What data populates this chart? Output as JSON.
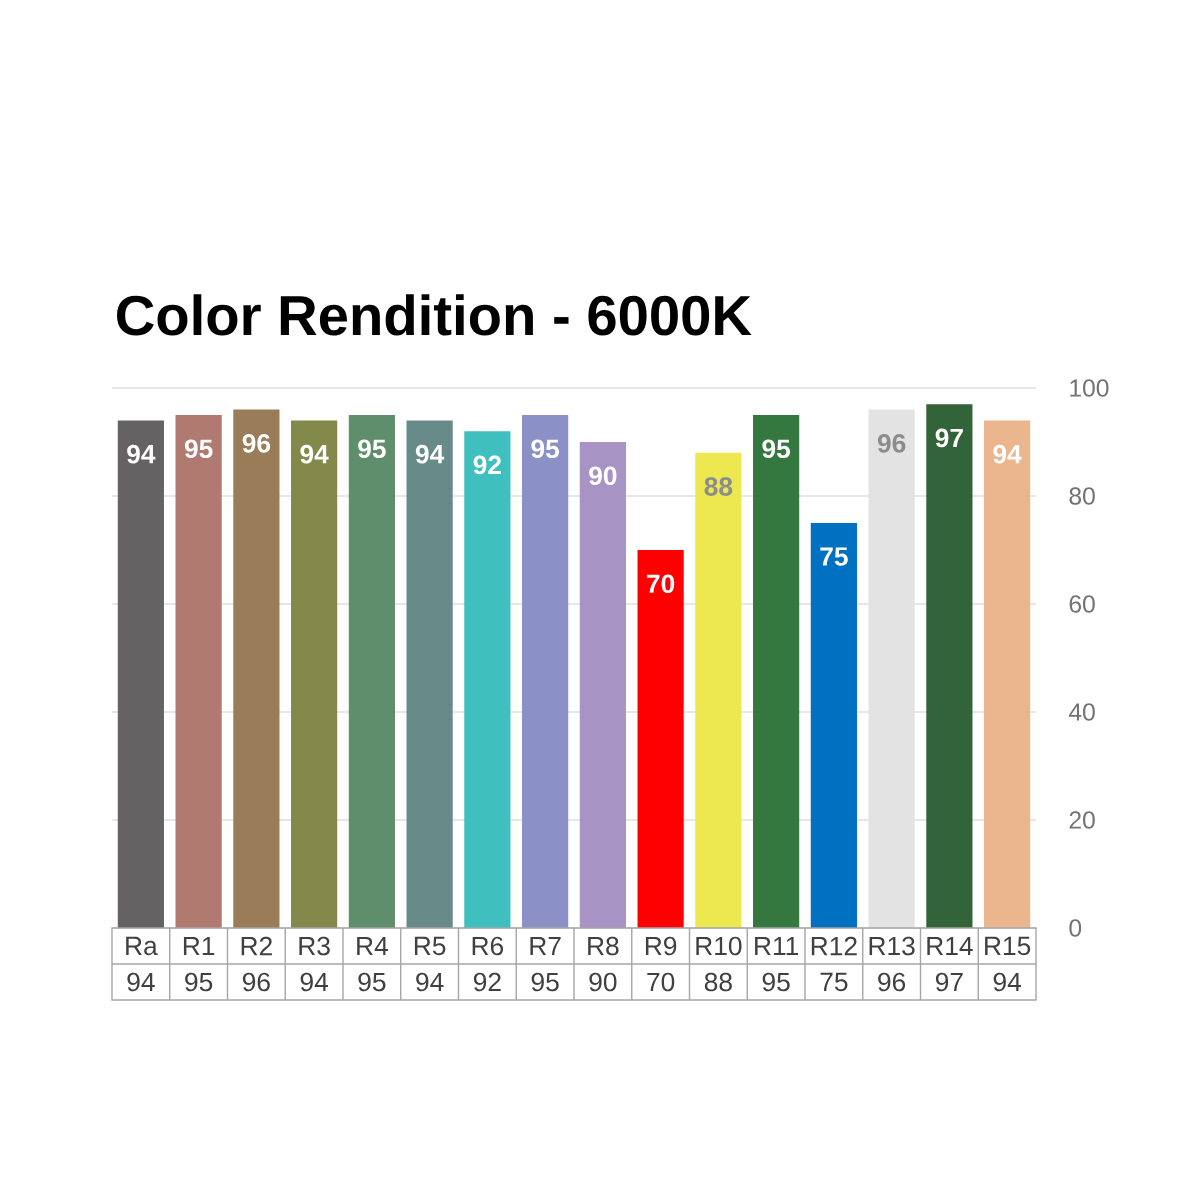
{
  "chart_data": {
    "type": "bar",
    "title": "Color Rendition - 6000K",
    "categories": [
      "Ra",
      "R1",
      "R2",
      "R3",
      "R4",
      "R5",
      "R6",
      "R7",
      "R8",
      "R9",
      "R10",
      "R11",
      "R12",
      "R13",
      "R14",
      "R15"
    ],
    "values": [
      94,
      95,
      96,
      94,
      95,
      94,
      92,
      95,
      90,
      70,
      88,
      95,
      75,
      96,
      97,
      94
    ],
    "colors": [
      "#646262",
      "#b07a70",
      "#9a7c59",
      "#83894b",
      "#5e8e6b",
      "#688b8a",
      "#40bfbf",
      "#8b90c7",
      "#a893c5",
      "#ff0000",
      "#ede84f",
      "#35783f",
      "#0070c0",
      "#e3e3e3",
      "#336338",
      "#ebb58d"
    ],
    "ylim": [
      0,
      100
    ],
    "yticks": [
      0,
      20,
      40,
      60,
      80,
      100
    ],
    "value_labels": [
      "94",
      "95",
      "96",
      "94",
      "95",
      "94",
      "92",
      "95",
      "90",
      "70",
      "88",
      "95",
      "75",
      "96",
      "97",
      "94"
    ],
    "grid": "y",
    "data_labels": true
  }
}
